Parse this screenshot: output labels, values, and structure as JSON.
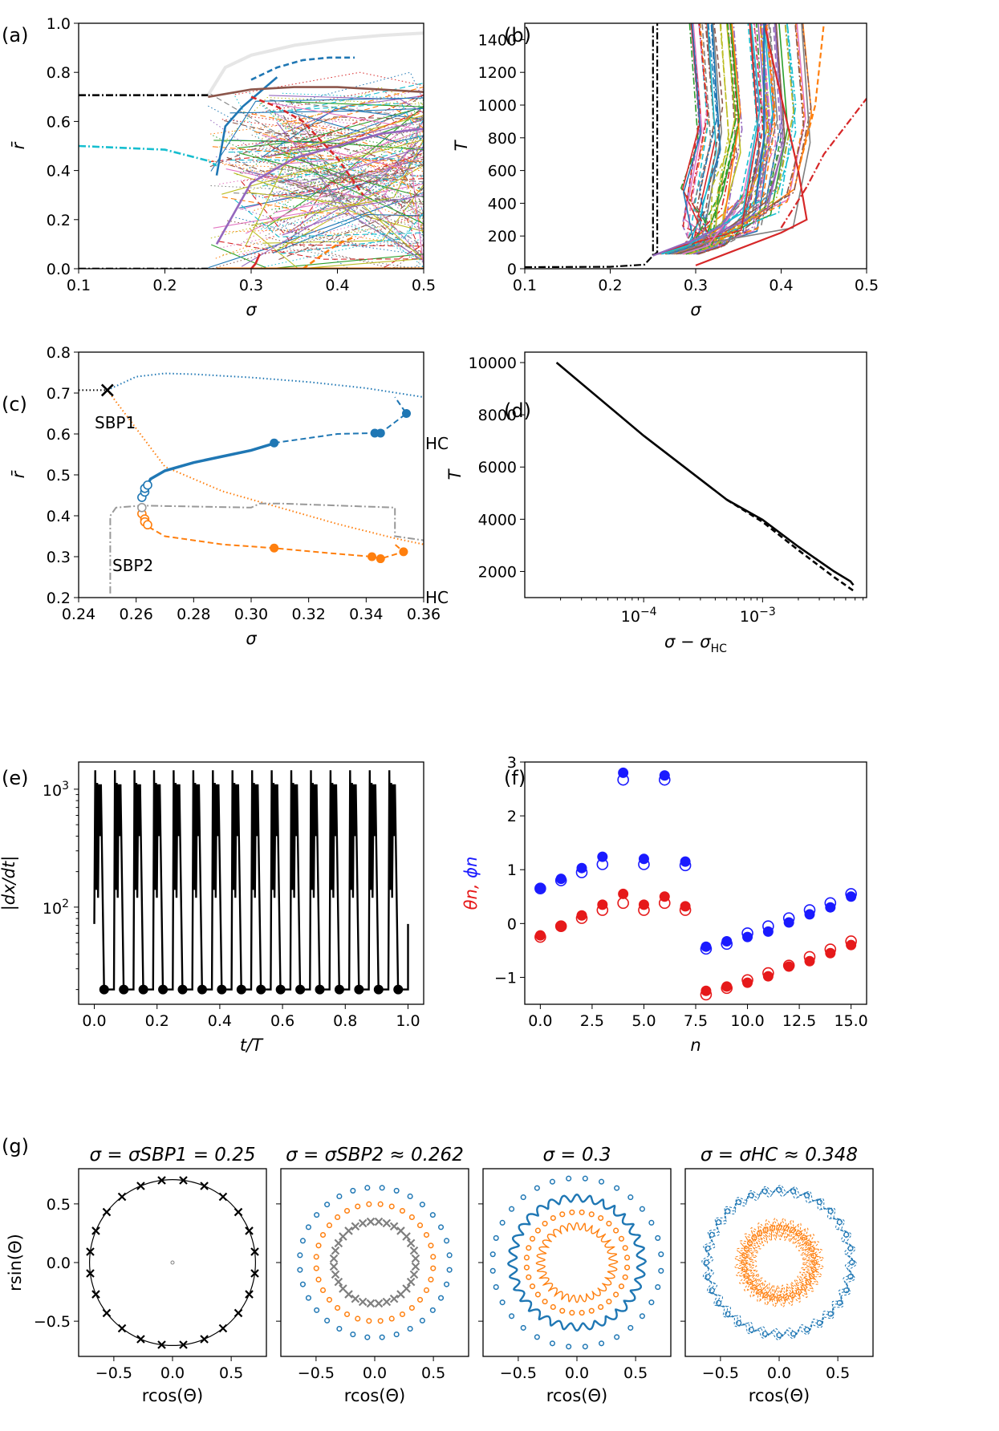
{
  "chart_data": [
    {
      "panel": "(a)",
      "type": "line",
      "xlabel": "σ",
      "ylabel": "r̄",
      "xlim": [
        0.1,
        0.5
      ],
      "ylim": [
        0.0,
        1.0
      ],
      "xticks": [
        "0.1",
        "0.2",
        "0.3",
        "0.4",
        "0.5"
      ],
      "yticks": [
        "0.0",
        "0.2",
        "0.4",
        "0.6",
        "0.8",
        "1.0"
      ],
      "series": [
        {
          "style": "solid",
          "color": "#e6e6e6",
          "x": [
            0.25,
            0.27,
            0.3,
            0.35,
            0.4,
            0.45,
            0.5
          ],
          "y": [
            0.707,
            0.82,
            0.87,
            0.91,
            0.935,
            0.95,
            0.96
          ]
        },
        {
          "style": "dashdot",
          "color": "#000000",
          "x": [
            0.1,
            0.25
          ],
          "y": [
            0.707,
            0.707
          ]
        },
        {
          "style": "dashdot",
          "color": "#000000",
          "x": [
            0.1,
            0.25
          ],
          "y": [
            0.0,
            0.0
          ]
        },
        {
          "style": "dashdot",
          "color": "#17becf",
          "x": [
            0.1,
            0.2,
            0.25,
            0.26
          ],
          "y": [
            0.5,
            0.485,
            0.44,
            0.42
          ]
        },
        {
          "style": "dashed",
          "color": "#1f77b4",
          "x": [
            0.3,
            0.33,
            0.36,
            0.39,
            0.42
          ],
          "y": [
            0.77,
            0.82,
            0.85,
            0.86,
            0.86
          ]
        },
        {
          "style": "solid",
          "color": "#1f77b4",
          "x": [
            0.26,
            0.27,
            0.29,
            0.31,
            0.33
          ],
          "y": [
            0.38,
            0.58,
            0.66,
            0.72,
            0.78
          ]
        },
        {
          "style": "solid",
          "color": "#9467bd",
          "x": [
            0.26,
            0.3,
            0.35,
            0.4,
            0.45,
            0.5
          ],
          "y": [
            0.1,
            0.35,
            0.45,
            0.5,
            0.55,
            0.57
          ]
        },
        {
          "style": "solid",
          "color": "#8c564b",
          "x": [
            0.25,
            0.3,
            0.35,
            0.4,
            0.45,
            0.5
          ],
          "y": [
            0.7,
            0.73,
            0.74,
            0.74,
            0.73,
            0.72
          ]
        },
        {
          "style": "dashed",
          "color": "#d62728",
          "x": [
            0.3,
            0.33,
            0.36,
            0.4,
            0.43
          ],
          "y": [
            0.7,
            0.66,
            0.6,
            0.45,
            0.3
          ]
        },
        {
          "style": "dashed",
          "color": "#ff7f0e",
          "x": [
            0.36,
            0.38,
            0.4,
            0.42
          ],
          "y": [
            0.0,
            0.05,
            0.1,
            0.13
          ]
        },
        {
          "style": "solid",
          "color": "#d62728",
          "x": [
            0.3,
            0.305,
            0.31
          ],
          "y": [
            0.0,
            0.02,
            0.06
          ]
        }
      ]
    },
    {
      "panel": "(b)",
      "type": "line",
      "xlabel": "σ",
      "ylabel": "T",
      "xlim": [
        0.1,
        0.5
      ],
      "ylim": [
        0,
        1500
      ],
      "xticks": [
        "0.1",
        "0.2",
        "0.3",
        "0.4",
        "0.5"
      ],
      "yticks": [
        "0",
        "200",
        "400",
        "600",
        "800",
        "1000",
        "1200",
        "1400"
      ],
      "series": [
        {
          "style": "dashdot",
          "color": "#000000",
          "x": [
            0.1,
            0.2,
            0.24,
            0.25,
            0.25
          ],
          "y": [
            10,
            12,
            25,
            80,
            1500
          ]
        },
        {
          "style": "dashdot",
          "color": "#000000",
          "x": [
            0.25,
            0.255,
            0.255
          ],
          "y": [
            80,
            100,
            1500
          ]
        },
        {
          "style": "solid",
          "color": "#9467bd",
          "x": [
            0.25,
            0.28,
            0.3,
            0.33,
            0.35
          ],
          "y": [
            80,
            140,
            180,
            260,
            420
          ]
        },
        {
          "style": "solid",
          "color": "#d62728",
          "x": [
            0.3,
            0.4,
            0.43,
            0.42,
            0.38
          ],
          "y": [
            20,
            220,
            300,
            600,
            1500
          ]
        },
        {
          "style": "dashdot",
          "color": "#d62728",
          "x": [
            0.4,
            0.43,
            0.45,
            0.5
          ],
          "y": [
            250,
            500,
            700,
            1040
          ]
        },
        {
          "style": "solid",
          "color": "#1f77b4",
          "x": [
            0.37,
            0.38,
            0.38
          ],
          "y": [
            400,
            800,
            1500
          ]
        },
        {
          "style": "dashed",
          "color": "#ff7f0e",
          "x": [
            0.42,
            0.44,
            0.45
          ],
          "y": [
            600,
            1000,
            1500
          ]
        }
      ]
    },
    {
      "panel": "(c)",
      "type": "line",
      "xlabel": "σ",
      "ylabel": "r̄",
      "xlim": [
        0.24,
        0.36
      ],
      "ylim": [
        0.2,
        0.8
      ],
      "xticks": [
        "0.24",
        "0.26",
        "0.28",
        "0.30",
        "0.32",
        "0.34",
        "0.36"
      ],
      "yticks": [
        "0.2",
        "0.3",
        "0.4",
        "0.5",
        "0.6",
        "0.7",
        "0.8"
      ],
      "annotations": [
        "SBP1",
        "HC",
        "SBP2",
        "HC"
      ],
      "series": [
        {
          "style": "dotted",
          "color": "#1f77b4",
          "x": [
            0.25,
            0.26,
            0.27,
            0.28,
            0.3,
            0.32,
            0.34,
            0.36
          ],
          "y": [
            0.707,
            0.74,
            0.748,
            0.746,
            0.738,
            0.727,
            0.712,
            0.69
          ]
        },
        {
          "style": "dotted",
          "color": "#ff7f0e",
          "x": [
            0.25,
            0.27,
            0.29,
            0.31,
            0.33,
            0.35,
            0.36
          ],
          "y": [
            0.707,
            0.52,
            0.46,
            0.42,
            0.38,
            0.345,
            0.33
          ]
        },
        {
          "style": "dotted",
          "color": "#000000",
          "x": [
            0.24,
            0.25
          ],
          "y": [
            0.707,
            0.707
          ]
        },
        {
          "style": "solid",
          "color": "#1f77b4",
          "x": [
            0.262,
            0.265,
            0.27,
            0.28,
            0.29,
            0.3,
            0.307
          ],
          "y": [
            0.45,
            0.49,
            0.51,
            0.53,
            0.545,
            0.56,
            0.575
          ]
        },
        {
          "style": "dashed",
          "color": "#1f77b4",
          "x": [
            0.308,
            0.32,
            0.33,
            0.342,
            0.345,
            0.354,
            0.352,
            0.35
          ],
          "y": [
            0.578,
            0.59,
            0.6,
            0.602,
            0.602,
            0.65,
            0.67,
            0.69
          ]
        },
        {
          "style": "dashed",
          "color": "#ff7f0e",
          "x": [
            0.262,
            0.263,
            0.265,
            0.27,
            0.29,
            0.308,
            0.325,
            0.342,
            0.345,
            0.353,
            0.35
          ],
          "y": [
            0.41,
            0.38,
            0.37,
            0.35,
            0.33,
            0.321,
            0.31,
            0.3,
            0.295,
            0.312,
            0.33
          ]
        },
        {
          "style": "dashdot",
          "color": "#999999",
          "x": [
            0.251,
            0.251,
            0.253,
            0.262,
            0.3,
            0.303,
            0.31,
            0.35,
            0.35,
            0.36
          ],
          "y": [
            0.21,
            0.4,
            0.42,
            0.425,
            0.42,
            0.43,
            0.43,
            0.42,
            0.35,
            0.34
          ]
        }
      ],
      "markers_filled": [
        {
          "color": "#1f77b4",
          "x": [
            0.308,
            0.343,
            0.345,
            0.354
          ],
          "y": [
            0.578,
            0.602,
            0.602,
            0.65
          ]
        },
        {
          "color": "#ff7f0e",
          "x": [
            0.308,
            0.342,
            0.345,
            0.353
          ],
          "y": [
            0.321,
            0.3,
            0.295,
            0.312
          ]
        }
      ],
      "markers_open": [
        {
          "color": "#1f77b4",
          "x": [
            0.262,
            0.263,
            0.263,
            0.264
          ],
          "y": [
            0.445,
            0.458,
            0.467,
            0.475
          ]
        },
        {
          "color": "#ff7f0e",
          "x": [
            0.262,
            0.263,
            0.263,
            0.264
          ],
          "y": [
            0.405,
            0.392,
            0.385,
            0.378
          ]
        },
        {
          "color": "#999999",
          "x": [
            0.262
          ],
          "y": [
            0.42
          ]
        }
      ],
      "marker_x": {
        "x": 0.25,
        "y": 0.707
      }
    },
    {
      "panel": "(d)",
      "type": "line",
      "xlabel": "σ − σHC",
      "ylabel": "T",
      "xscale": "log",
      "xlim": [
        1e-05,
        0.0075
      ],
      "ylim": [
        1000,
        10400
      ],
      "xticks": [
        "10^-4",
        "10^-3"
      ],
      "yticks": [
        "2000",
        "4000",
        "6000",
        "8000",
        "10000"
      ],
      "series": [
        {
          "style": "solid",
          "color": "#000000",
          "x": [
            1.85e-05,
            0.0001,
            0.0005,
            0.001,
            0.002,
            0.004,
            0.0055,
            0.0058
          ],
          "y": [
            10000,
            7200,
            4750,
            3980,
            2950,
            2000,
            1620,
            1480
          ]
        },
        {
          "style": "dashed",
          "color": "#000000",
          "x": [
            0.0005,
            0.001,
            0.002,
            0.004,
            0.006
          ],
          "y": [
            4750,
            3900,
            2820,
            1780,
            1220
          ]
        }
      ]
    },
    {
      "panel": "(e)",
      "type": "line",
      "xlabel": "t/T",
      "ylabel": "|dx/dt|",
      "yscale": "log",
      "xlim": [
        -0.05,
        1.05
      ],
      "ylim": [
        15,
        1700
      ],
      "xticks": [
        "0.0",
        "0.2",
        "0.4",
        "0.6",
        "0.8",
        "1.0"
      ],
      "yticks": [
        "10^2",
        "10^3"
      ],
      "pulses": 16,
      "peak": 1450,
      "secondary_peak": 1100,
      "baseline_marker": 20,
      "series": [
        {
          "style": "solid",
          "color": "#000000",
          "x": [
            0.0,
            0.01,
            0.02,
            0.03,
            0.04,
            0.0625
          ],
          "y": [
            72,
            1450,
            120,
            1100,
            300,
            20
          ]
        }
      ],
      "markers_filled": [
        {
          "color": "#000000",
          "x": [
            0.0313,
            0.0938,
            0.1563,
            0.2188,
            0.2813,
            0.3438,
            0.4063,
            0.4688,
            0.5313,
            0.5938,
            0.6563,
            0.7188,
            0.7813,
            0.8438,
            0.9063,
            0.9688
          ],
          "y": [
            20,
            20,
            20,
            20,
            20,
            20,
            20,
            20,
            20,
            20,
            20,
            20,
            20,
            20,
            20,
            20
          ]
        }
      ]
    },
    {
      "panel": "(f)",
      "type": "scatter",
      "xlabel": "n",
      "ylabel_parts": [
        "θn,",
        "ϕn"
      ],
      "ylabel_colors": [
        "#e6191a",
        "#1a1aff"
      ],
      "xlim": [
        -0.75,
        15.75
      ],
      "ylim": [
        -1.5,
        3.0
      ],
      "xticks": [
        "0.0",
        "2.5",
        "5.0",
        "7.5",
        "10.0",
        "12.5",
        "15.0"
      ],
      "yticks": [
        "−1",
        "0",
        "1",
        "2",
        "3"
      ],
      "series": [
        {
          "name": "ϕn",
          "color": "#1a1aff",
          "x": [
            0,
            1,
            2,
            3,
            4,
            5,
            6,
            7,
            8,
            9,
            10,
            11,
            12,
            13,
            14,
            15
          ],
          "y_filled": [
            0.66,
            0.83,
            1.03,
            1.24,
            2.8,
            1.2,
            2.75,
            1.15,
            -0.43,
            -0.33,
            -0.25,
            -0.15,
            0.02,
            0.17,
            0.3,
            0.5
          ],
          "y_open": [
            0.65,
            0.8,
            0.95,
            1.1,
            2.67,
            1.1,
            2.67,
            1.08,
            -0.47,
            -0.38,
            -0.18,
            -0.05,
            0.1,
            0.25,
            0.38,
            0.55
          ]
        },
        {
          "name": "θn",
          "color": "#e6191a",
          "x": [
            0,
            1,
            2,
            3,
            4,
            5,
            6,
            7,
            8,
            9,
            10,
            11,
            12,
            13,
            14,
            15
          ],
          "y_filled": [
            -0.22,
            -0.05,
            0.15,
            0.35,
            0.55,
            0.35,
            0.5,
            0.32,
            -1.25,
            -1.17,
            -1.1,
            -0.98,
            -0.8,
            -0.7,
            -0.55,
            -0.4
          ],
          "y_open": [
            -0.25,
            -0.05,
            0.1,
            0.25,
            0.38,
            0.25,
            0.38,
            0.25,
            -1.32,
            -1.2,
            -1.05,
            -0.92,
            -0.78,
            -0.62,
            -0.48,
            -0.33
          ]
        }
      ]
    },
    {
      "panel": "(g)",
      "type": "scatter",
      "xlabel": "rcos(Θ)",
      "ylabel": "rsin(Θ)",
      "xlim": [
        -0.8,
        0.8
      ],
      "ylim": [
        -0.8,
        0.8
      ],
      "xticks": [
        "−0.5",
        "0.0",
        "0.5"
      ],
      "yticks": [
        "−0.5",
        "0.0",
        "0.5"
      ],
      "subplots": [
        {
          "title": "σ = σSBP1 = 0.25",
          "rings": [
            {
              "r": 0.707,
              "n": 24,
              "marker": "x",
              "color": "#000000",
              "curve": true
            }
          ]
        },
        {
          "title": "σ = σSBP2 ≈ 0.262",
          "rings": [
            {
              "r": 0.64,
              "n": 32,
              "marker": "o",
              "color": "#1f77b4"
            },
            {
              "r": 0.5,
              "n": 32,
              "marker": "o",
              "color": "#ff7f0e"
            },
            {
              "r": 0.35,
              "n": 32,
              "marker": "x",
              "color": "#7f7f7f"
            }
          ]
        },
        {
          "title": "σ = 0.3",
          "rings": [
            {
              "r": 0.72,
              "n": 32,
              "marker": "o",
              "color": "#1f77b4"
            },
            {
              "r": 0.55,
              "n": 32,
              "marker": "loop",
              "color": "#1f77b4"
            },
            {
              "r": 0.43,
              "n": 32,
              "marker": "o",
              "color": "#ff7f0e"
            },
            {
              "r": 0.31,
              "n": 32,
              "marker": "loop",
              "color": "#ff7f0e"
            }
          ]
        },
        {
          "title": "σ = σHC ≈ 0.348",
          "rings": [
            {
              "r": 0.62,
              "n": 32,
              "marker": "star",
              "color": "#1f77b4"
            },
            {
              "r": 0.3,
              "n": 32,
              "marker": "dense",
              "color": "#ff7f0e"
            }
          ]
        }
      ]
    }
  ],
  "panel_labels": [
    "(a)",
    "(b)",
    "(c)",
    "(d)",
    "(e)",
    "(f)",
    "(g)"
  ]
}
